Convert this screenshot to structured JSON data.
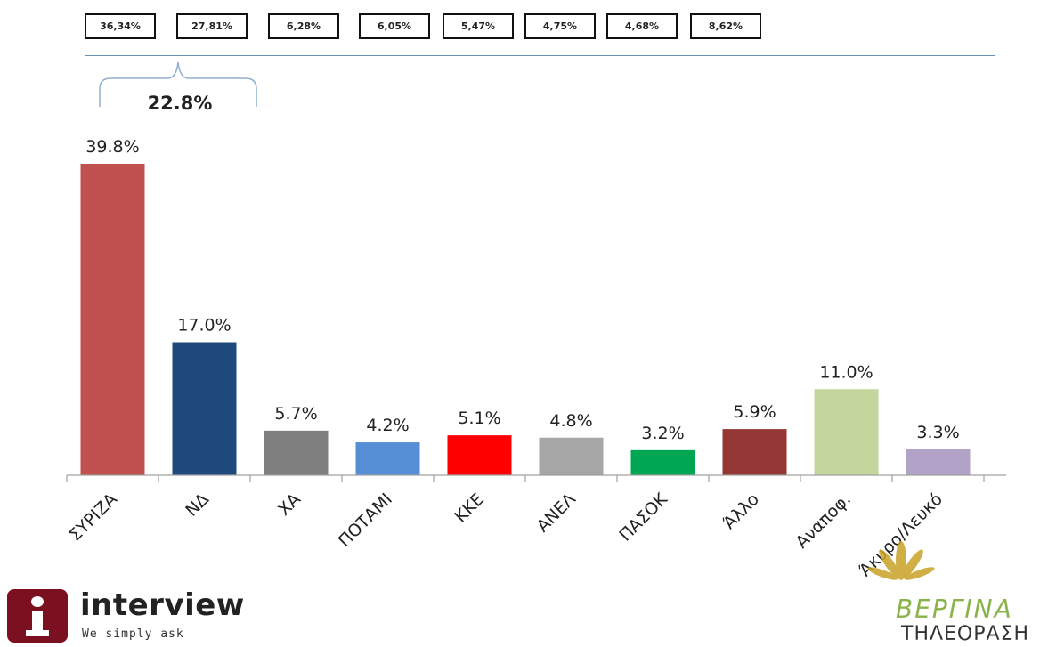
{
  "reference_boxes": [
    "36,34%",
    "27,81%",
    "6,28%",
    "6,05%",
    "5,47%",
    "4,75%",
    "4,68%",
    "8,62%"
  ],
  "gap_label": "22.8%",
  "chart_data": {
    "type": "bar",
    "categories": [
      "ΣΥΡΙΖΑ",
      "ΝΔ",
      "ΧΑ",
      "ΠΟΤΑΜΙ",
      "ΚΚΕ",
      "ΑΝΕΛ",
      "ΠΑΣΟΚ",
      "Άλλο",
      "Αναποφ.",
      "Άκυρο/Λευκό"
    ],
    "values": [
      39.8,
      17.0,
      5.7,
      4.2,
      5.1,
      4.8,
      3.2,
      5.9,
      11.0,
      3.3
    ],
    "value_labels": [
      "39.8%",
      "17.0%",
      "5.7%",
      "4.2%",
      "5.1%",
      "4.8%",
      "3.2%",
      "5.9%",
      "11.0%",
      "3.3%"
    ],
    "colors": [
      "#c0504d",
      "#1f497d",
      "#7f7f7f",
      "#558ed5",
      "#ff0000",
      "#a6a6a6",
      "#00a651",
      "#953735",
      "#c3d69b",
      "#b3a2c7"
    ],
    "ylim": [
      0,
      40
    ],
    "grid": false,
    "title": "",
    "xlabel": "",
    "ylabel": ""
  },
  "logos": {
    "left_name": "interview",
    "left_tagline": "We simply ask",
    "right_name": "ΒΕΡΓΙΝΑ",
    "right_sub": "ΤΗΛΕΟΡΑΣΗ"
  }
}
